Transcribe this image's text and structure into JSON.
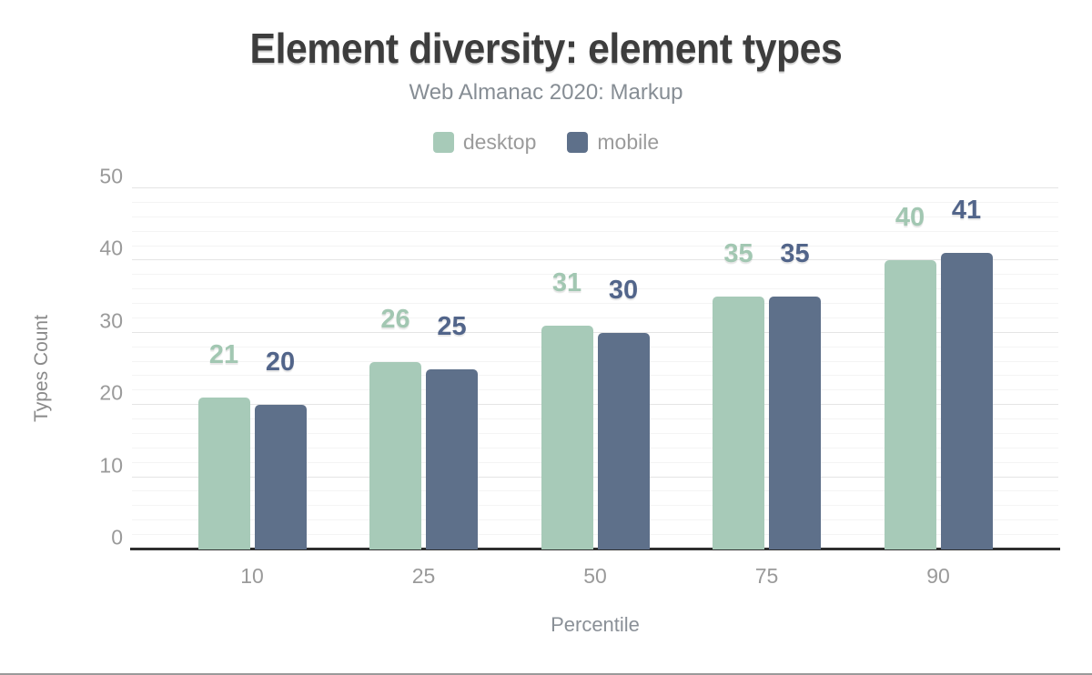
{
  "chart_data": {
    "type": "bar",
    "title": "Element diversity: element types",
    "subtitle": "Web Almanac 2020: Markup",
    "categories": [
      "10",
      "25",
      "50",
      "75",
      "90"
    ],
    "series": [
      {
        "name": "desktop",
        "values": [
          21,
          26,
          31,
          35,
          40
        ],
        "color": "#a7cab8",
        "label_color": "#a2c7b2"
      },
      {
        "name": "mobile",
        "values": [
          20,
          25,
          30,
          35,
          41
        ],
        "color": "#5e708a",
        "label_color": "#52658a"
      }
    ],
    "xlabel": "Percentile",
    "ylabel": "Types Count",
    "ylim": [
      0,
      50
    ],
    "y_ticks": [
      0,
      10,
      20,
      30,
      40,
      50
    ],
    "minor_grid_step": 2,
    "grid": true,
    "legend_position": "top",
    "value_labels_shown": true,
    "colors": {
      "title_text": "#3d3d3d",
      "subtitle_text": "#868d94",
      "axis_text": "#9a9a9a",
      "major_grid": "#e5e5e5",
      "minor_grid": "#f4f4f4",
      "axis_line": "#2f2f2f"
    }
  }
}
